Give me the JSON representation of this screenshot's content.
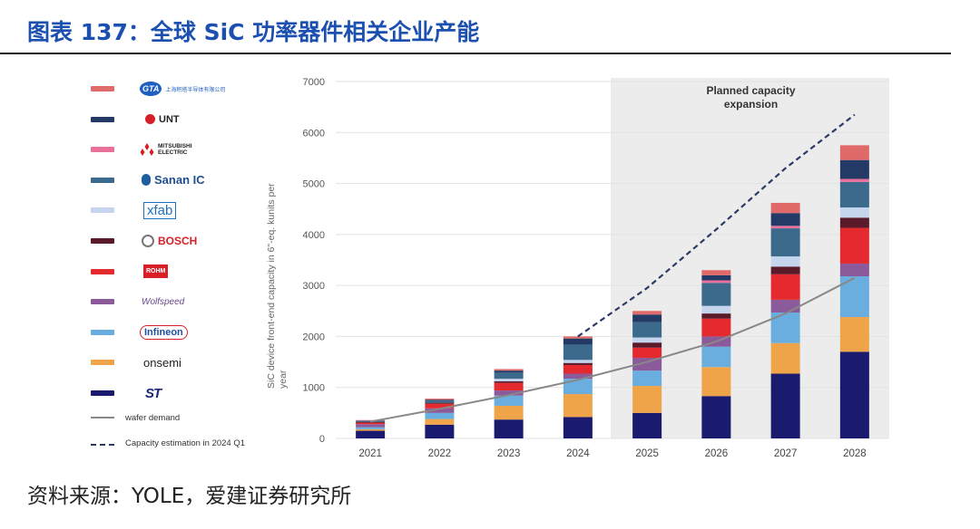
{
  "page": {
    "title": "图表 137：全球 SiC 功率器件相关企业产能",
    "source": "资料来源：YOLE，爱建证券研究所"
  },
  "legend": {
    "items": [
      {
        "name": "gta",
        "label": "GTA",
        "sublabel": "上海积塔半导体有限公司",
        "color": "#e0696a"
      },
      {
        "name": "unt",
        "label": "UNT",
        "color": "#243a66"
      },
      {
        "name": "mitsubishi",
        "label": "MITSUBISHI ELECTRIC",
        "color": "#e8709a"
      },
      {
        "name": "sanan-ic",
        "label": "Sanan IC",
        "color": "#3b6a8c"
      },
      {
        "name": "xfab",
        "label": "xfab",
        "color": "#c5d5ee"
      },
      {
        "name": "bosch",
        "label": "BOSCH",
        "color": "#5a1a2a"
      },
      {
        "name": "rohm",
        "label": "ROHM",
        "color": "#e52a2f"
      },
      {
        "name": "wolfspeed",
        "label": "Wolfspeed",
        "color": "#8a5a9a"
      },
      {
        "name": "infineon",
        "label": "Infineon",
        "color": "#6aaee0"
      },
      {
        "name": "onsemi",
        "label": "onsemi",
        "color": "#f0a44a"
      },
      {
        "name": "st",
        "label": "ST",
        "color": "#1a1a6e"
      }
    ],
    "lines": [
      {
        "name": "wafer-demand",
        "label": "wafer demand",
        "color": "#888888"
      },
      {
        "name": "capacity-estimation",
        "label": "Capacity estimation in 2024 Q1",
        "color": "#2d3a66"
      }
    ]
  },
  "chart_data": {
    "type": "bar",
    "stacked": true,
    "categories": [
      "2021",
      "2022",
      "2023",
      "2024",
      "2025",
      "2026",
      "2027",
      "2028"
    ],
    "ylabel": "SiC device front-end capacity in 6\"-eq. kunits per year",
    "ylim": [
      0,
      7000
    ],
    "yticks": [
      0,
      1000,
      2000,
      3000,
      4000,
      5000,
      6000,
      7000
    ],
    "annotation": "Planned capacity expansion",
    "shaded_region": {
      "from": "2025",
      "to": "2028"
    },
    "series": [
      {
        "name": "ST",
        "color": "#1a1a6e",
        "values": [
          150,
          270,
          370,
          420,
          500,
          830,
          1270,
          1700
        ]
      },
      {
        "name": "onsemi",
        "color": "#f0a44a",
        "values": [
          30,
          110,
          270,
          450,
          530,
          570,
          600,
          680
        ]
      },
      {
        "name": "Infineon",
        "color": "#6aaee0",
        "values": [
          40,
          120,
          200,
          300,
          300,
          400,
          600,
          800
        ]
      },
      {
        "name": "Wolfspeed",
        "color": "#8a5a9a",
        "values": [
          60,
          90,
          100,
          100,
          250,
          200,
          250,
          250
        ]
      },
      {
        "name": "ROHM",
        "color": "#e52a2f",
        "values": [
          30,
          90,
          150,
          170,
          200,
          350,
          500,
          700
        ]
      },
      {
        "name": "BOSCH",
        "color": "#5a1a2a",
        "values": [
          10,
          20,
          30,
          40,
          100,
          100,
          150,
          200
        ]
      },
      {
        "name": "xfab",
        "color": "#c5d5ee",
        "values": [
          0,
          0,
          50,
          60,
          100,
          150,
          200,
          200
        ]
      },
      {
        "name": "Sanan IC",
        "color": "#3b6a8c",
        "values": [
          20,
          40,
          120,
          300,
          300,
          450,
          550,
          500
        ]
      },
      {
        "name": "Mitsubishi Electric",
        "color": "#e8709a",
        "values": [
          0,
          0,
          0,
          0,
          0,
          50,
          50,
          60
        ]
      },
      {
        "name": "UNT",
        "color": "#243a66",
        "values": [
          10,
          20,
          40,
          120,
          150,
          100,
          250,
          370
        ]
      },
      {
        "name": "GTA",
        "color": "#e0696a",
        "values": [
          10,
          20,
          30,
          40,
          70,
          100,
          200,
          290
        ]
      }
    ],
    "lines": [
      {
        "name": "wafer demand",
        "style": "solid",
        "color": "#888888",
        "x": [
          "2021",
          "2022",
          "2023",
          "2024",
          "2025",
          "2026",
          "2027",
          "2028"
        ],
        "values": [
          330,
          580,
          850,
          1150,
          1500,
          1900,
          2450,
          3150
        ]
      },
      {
        "name": "Capacity estimation in 2024 Q1",
        "style": "dashed",
        "color": "#2d3a66",
        "x": [
          "2024",
          "2025",
          "2026",
          "2027",
          "2028"
        ],
        "values": [
          2000,
          2950,
          4100,
          5300,
          6350
        ]
      }
    ]
  }
}
